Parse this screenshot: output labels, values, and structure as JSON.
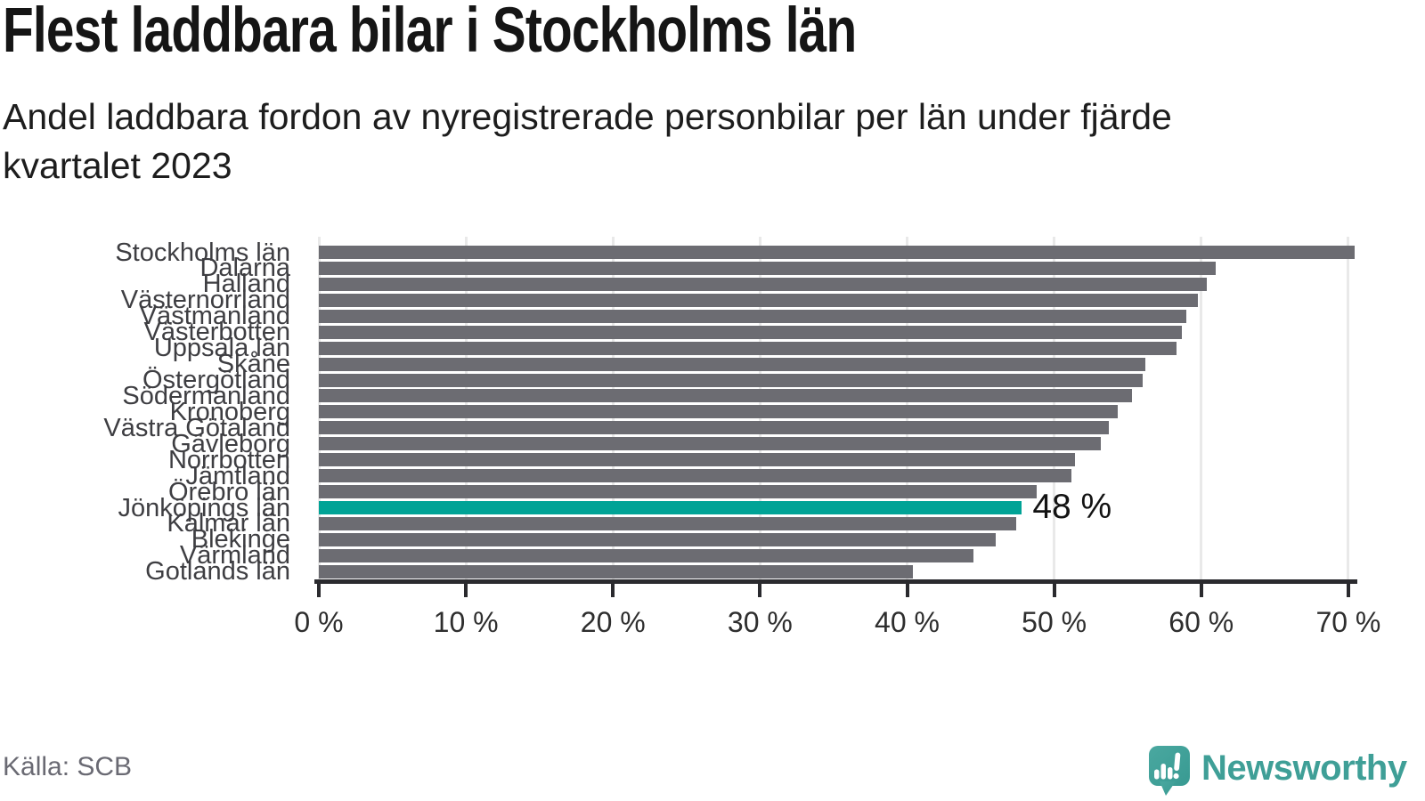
{
  "header": {
    "title": "Flest laddbara bilar i Stockholms län",
    "subtitle_line1": "Andel laddbara fordon av nyregistrerade personbilar per län under fjärde",
    "subtitle_line2": "kvartalet 2023"
  },
  "chart_data": {
    "type": "bar",
    "orientation": "horizontal",
    "title": "Flest laddbara bilar i Stockholms län",
    "subtitle": "Andel laddbara fordon av nyregistrerade personbilar per län under fjärde kvartalet 2023",
    "categories": [
      "Stockholms län",
      "Dalarna",
      "Halland",
      "Västernorrland",
      "Västmanland",
      "Västerbotten",
      "Uppsala län",
      "Skåne",
      "Östergötland",
      "Södermanland",
      "Kronoberg",
      "Västra Götaland",
      "Gävleborg",
      "Norrbotten",
      "Jämtland",
      "Örebro län",
      "Jönköpings län",
      "Kalmar län",
      "Blekinge",
      "Värmland",
      "Gotlands län"
    ],
    "values": [
      70.4,
      61.0,
      60.4,
      59.8,
      59.0,
      58.7,
      58.3,
      56.2,
      56.0,
      55.3,
      54.3,
      53.7,
      53.2,
      51.4,
      51.2,
      48.8,
      47.8,
      47.4,
      46.0,
      44.5,
      40.4
    ],
    "unit": "%",
    "highlight": {
      "category": "Jönköpings län",
      "index": 16,
      "annotation": "48 %"
    },
    "xlim": [
      0,
      70.6
    ],
    "x_ticks": [
      0,
      10,
      20,
      30,
      40,
      50,
      60,
      70
    ],
    "x_tick_labels": [
      "0 %",
      "10 %",
      "20 %",
      "30 %",
      "40 %",
      "50 %",
      "60 %",
      "70 %"
    ],
    "grid": true,
    "legend": "none",
    "bar_color": "#6c6c72",
    "highlight_color": "#00a396"
  },
  "footer": {
    "source": "Källa: SCB",
    "brand": "Newsworthy",
    "brand_color": "#3f9f97"
  }
}
